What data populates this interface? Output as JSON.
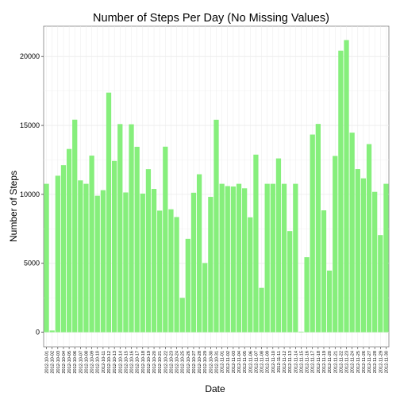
{
  "chart_data": {
    "type": "bar",
    "title": "Number of Steps Per Day (No Missing Values)",
    "xlabel": "Date",
    "ylabel": "Number of Steps",
    "ylim": [
      -1060,
      22200
    ],
    "yticks": [
      0,
      5000,
      10000,
      15000,
      20000
    ],
    "grid": true,
    "legend": "none",
    "bar_color": "#86ef7c",
    "panel_color": "#ffffff",
    "grid_color": "#ebebeb",
    "categories": [
      "2012-10-01",
      "2012-10-02",
      "2012-10-03",
      "2012-10-04",
      "2012-10-05",
      "2012-10-06",
      "2012-10-07",
      "2012-10-08",
      "2012-10-09",
      "2012-10-10",
      "2012-10-11",
      "2012-10-12",
      "2012-10-13",
      "2012-10-14",
      "2012-10-15",
      "2012-10-16",
      "2012-10-17",
      "2012-10-18",
      "2012-10-19",
      "2012-10-20",
      "2012-10-21",
      "2012-10-22",
      "2012-10-23",
      "2012-10-24",
      "2012-10-25",
      "2012-10-26",
      "2012-10-27",
      "2012-10-28",
      "2012-10-29",
      "2012-10-30",
      "2012-10-31",
      "2012-11-01",
      "2012-11-02",
      "2012-11-03",
      "2012-11-04",
      "2012-11-05",
      "2012-11-06",
      "2012-11-07",
      "2012-11-08",
      "2012-11-09",
      "2012-11-10",
      "2012-11-11",
      "2012-11-12",
      "2012-11-13",
      "2012-11-14",
      "2012-11-15",
      "2012-11-16",
      "2012-11-17",
      "2012-11-18",
      "2012-11-19",
      "2012-11-20",
      "2012-11-21",
      "2012-11-22",
      "2012-11-23",
      "2012-11-24",
      "2012-11-25",
      "2012-11-26",
      "2012-11-27",
      "2012-11-28",
      "2012-11-29",
      "2012-11-30"
    ],
    "values": [
      10766,
      126,
      11352,
      12116,
      13294,
      15420,
      11015,
      10766,
      12811,
      9900,
      10304,
      17382,
      12426,
      15098,
      10139,
      15084,
      13452,
      10056,
      11829,
      10395,
      8821,
      13460,
      8918,
      8355,
      2492,
      6778,
      10119,
      11458,
      5018,
      9819,
      15414,
      10766,
      10600,
      10571,
      10766,
      10439,
      8334,
      12883,
      3219,
      10766,
      10766,
      12608,
      10765,
      7336,
      10766,
      41,
      5441,
      14339,
      15110,
      8841,
      4472,
      12787,
      20427,
      21194,
      14478,
      11834,
      11162,
      13646,
      10183,
      7047,
      10766
    ]
  }
}
